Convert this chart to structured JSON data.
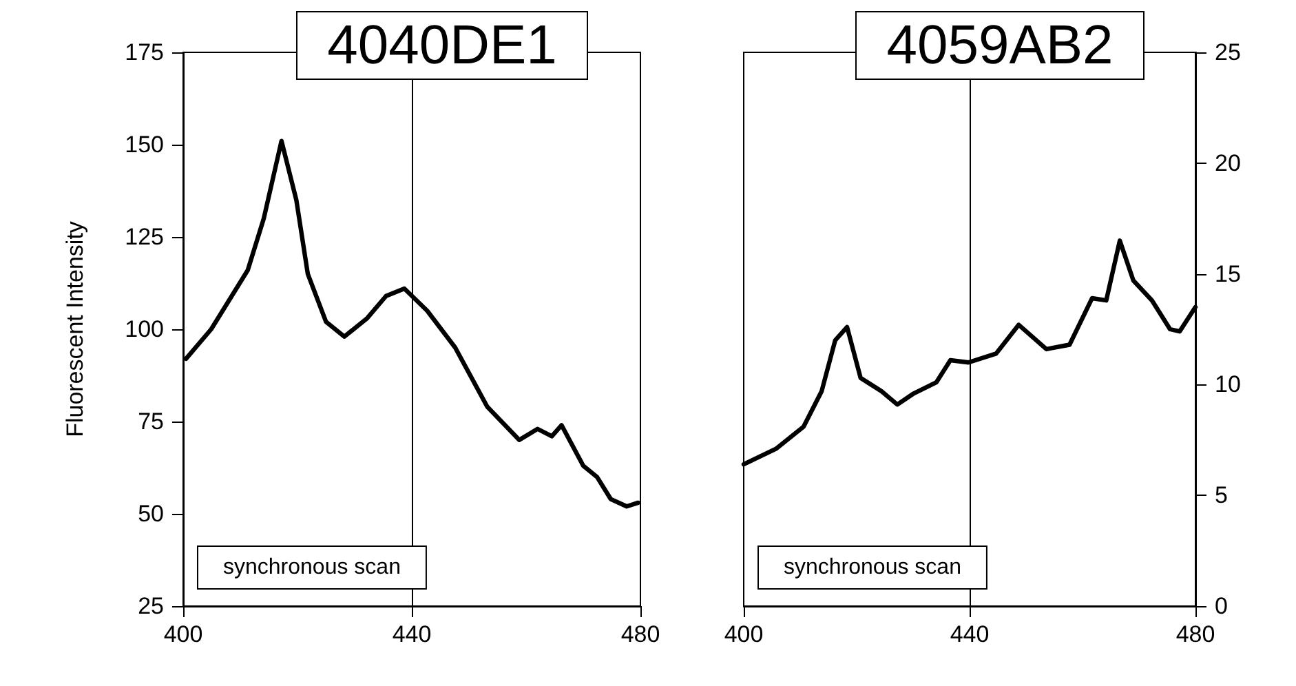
{
  "chart_data": [
    {
      "type": "line",
      "title": "4040DE1",
      "ylabel": "Fluorescent Intensity",
      "annotations": [
        "synchronous scan"
      ],
      "xlim": [
        400,
        480
      ],
      "xticks": [
        400,
        440,
        480
      ],
      "ylim": [
        25,
        175
      ],
      "yticks": [
        25,
        50,
        75,
        100,
        125,
        150,
        175
      ],
      "ref_lines": [
        {
          "axis": "x",
          "value": 440,
          "color": "#000000"
        }
      ],
      "marker": "none",
      "series": [
        {
          "color": "#000000",
          "x": [
            400.5,
            404.9,
            411.3,
            414.1,
            417.2,
            419.8,
            421.8,
            425,
            428.2,
            432.2,
            435.5,
            438.7,
            442.7,
            447.6,
            453.2,
            458.8,
            462,
            464.5,
            466.2,
            470,
            472.4,
            474.8,
            477.6,
            479.6
          ],
          "values": [
            92,
            100,
            116,
            130,
            151,
            135,
            115,
            102,
            98,
            103,
            109,
            111,
            105,
            95,
            79,
            70,
            73,
            71,
            74,
            63,
            60,
            54,
            52,
            53
          ]
        }
      ]
    },
    {
      "type": "line",
      "title": "4059AB2",
      "annotations": [
        "synchronous scan"
      ],
      "xlim": [
        400,
        480
      ],
      "xticks": [
        400,
        440,
        480
      ],
      "y2lim": [
        0,
        25
      ],
      "y2ticks": [
        0,
        5,
        10,
        15,
        20,
        25
      ],
      "ref_lines": [
        {
          "axis": "x",
          "value": 440,
          "color": "#000000"
        }
      ],
      "marker": "none",
      "series": [
        {
          "color": "#000000",
          "axis": "y2",
          "x": [
            400,
            405.7,
            410.6,
            413.8,
            416.2,
            418.3,
            420.7,
            424.4,
            427.2,
            430.1,
            434.1,
            436.6,
            439.8,
            444.7,
            448.7,
            453.6,
            457.7,
            461.7,
            464.2,
            466.6,
            469,
            472.3,
            475.5,
            477.2,
            480
          ],
          "values": [
            6.4,
            7.1,
            8.1,
            9.7,
            12.0,
            12.6,
            10.3,
            9.7,
            9.1,
            9.6,
            10.1,
            11.1,
            11.0,
            11.4,
            12.7,
            11.6,
            11.8,
            13.9,
            13.8,
            16.5,
            14.7,
            13.8,
            12.5,
            12.4,
            13.5
          ]
        }
      ]
    }
  ]
}
